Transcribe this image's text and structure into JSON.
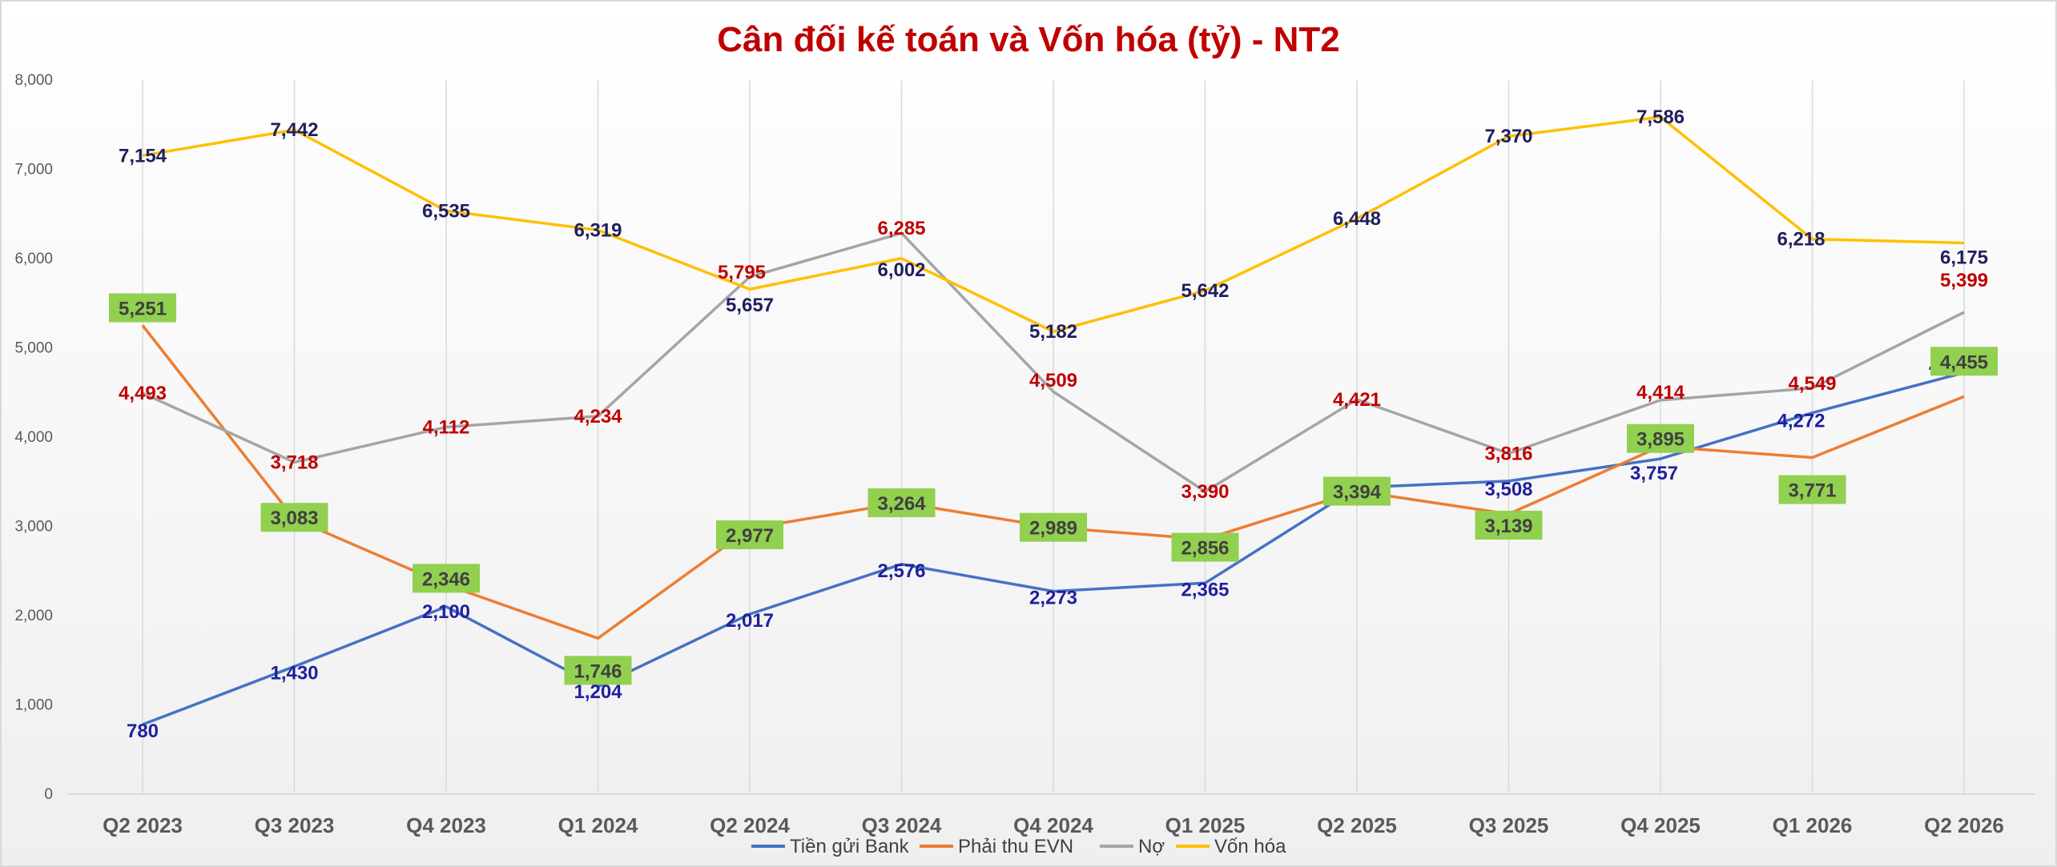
{
  "chart_data": {
    "type": "line",
    "title": "Cân đối kế toán và Vốn hóa (tỷ) - NT2",
    "categories": [
      "Q2 2023",
      "Q3 2023",
      "Q4 2023",
      "Q1 2024",
      "Q2 2024",
      "Q3 2024",
      "Q4 2024",
      "Q1 2025",
      "Q2 2025",
      "Q3 2025",
      "Q4 2025",
      "Q1 2026",
      "Q2 2026"
    ],
    "yticks": [
      "0",
      "1,000",
      "2,000",
      "3,000",
      "4,000",
      "5,000",
      "6,000",
      "7,000",
      "8,000"
    ],
    "ylim": [
      0,
      8000
    ],
    "grid": "vertical lines at categories",
    "legend": "bottom",
    "series": [
      {
        "name": "Tiền gửi Bank",
        "color": "#4472C4",
        "label_color": "#1F1F9F",
        "label_style": "plain",
        "values": [
          780,
          1430,
          2100,
          1204,
          2017,
          2576,
          2273,
          2365,
          3435,
          3508,
          3757,
          4272,
          4722
        ],
        "labels": [
          "780",
          "1,430",
          "2,100",
          "1,204",
          "2,017",
          "2,576",
          "2,273",
          "2,365",
          "",
          "3,508",
          "3,757",
          "4,272",
          "4,722"
        ]
      },
      {
        "name": "Phải thu EVN",
        "color": "#ED7D31",
        "label_color": "#404040",
        "label_style": "boxed",
        "box_color": "#92D050",
        "values": [
          5251,
          3083,
          2346,
          1746,
          2977,
          3264,
          2989,
          2856,
          3394,
          3139,
          3895,
          3771,
          4455
        ],
        "labels": [
          "5,251",
          "3,083",
          "2,346",
          "1,746",
          "2,977",
          "3,264",
          "2,989",
          "2,856",
          "3,394",
          "3,139",
          "3,895",
          "3,771",
          "4,455"
        ]
      },
      {
        "name": "Nợ",
        "color": "#A5A5A5",
        "label_color": "#C00000",
        "label_style": "plain",
        "values": [
          4493,
          3718,
          4112,
          4234,
          5795,
          6285,
          4509,
          3390,
          4421,
          3816,
          4414,
          4549,
          5399
        ],
        "labels": [
          "4,493",
          "3,718",
          "4,112",
          "4,234",
          "5,795",
          "6,285",
          "4,509",
          "3,390",
          "4,421",
          "3,816",
          "4,414",
          "4,549",
          "5,399"
        ]
      },
      {
        "name": "Vốn hóa",
        "color": "#FFC000",
        "label_color": "#1F2060",
        "label_style": "plain",
        "values": [
          7154,
          7442,
          6535,
          6319,
          5657,
          6002,
          5182,
          5642,
          6448,
          7370,
          7586,
          6218,
          6175
        ],
        "labels": [
          "7,154",
          "7,442",
          "6,535",
          "6,319",
          "5,657",
          "6,002",
          "5,182",
          "5,642",
          "6,448",
          "7,370",
          "7,586",
          "6,218",
          "6,175"
        ]
      }
    ]
  },
  "colors": {
    "title": "#C00000",
    "axis": "#D9D9D9",
    "grid": "#D9D9D9",
    "border": "#D9D9D9"
  }
}
